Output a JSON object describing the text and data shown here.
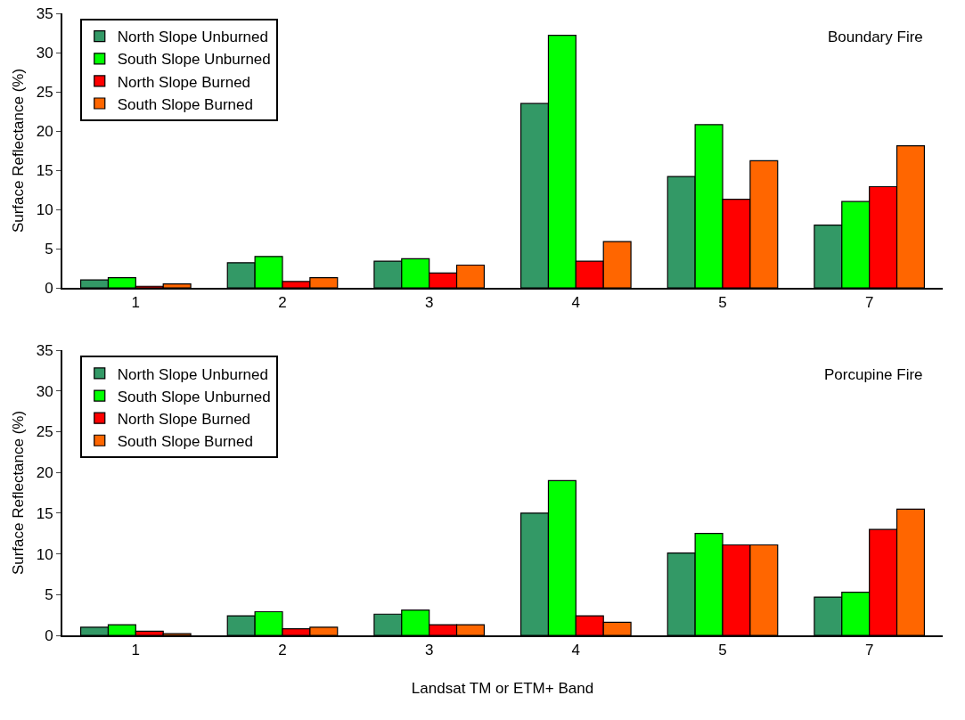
{
  "chart_data": [
    {
      "type": "bar",
      "ylabel": "Surface Reflectance (%)",
      "categories": [
        "1",
        "2",
        "3",
        "4",
        "5",
        "7"
      ],
      "ylim": [
        0,
        35
      ],
      "yticks": [
        0,
        5,
        10,
        15,
        20,
        25,
        30,
        35
      ],
      "grid": false,
      "legend": "top left",
      "annotations": [
        "Boundary Fire"
      ],
      "series": [
        {
          "name": "North Slope Unburned",
          "color": "#339966",
          "values": [
            1.0,
            3.2,
            3.4,
            23.5,
            14.2,
            8.0
          ]
        },
        {
          "name": "South Slope Unburned",
          "color": "#00ff00",
          "values": [
            1.3,
            4.0,
            3.7,
            32.2,
            20.8,
            11.0
          ]
        },
        {
          "name": "North Slope Burned",
          "color": "#ff0000",
          "values": [
            0.2,
            0.8,
            1.9,
            3.4,
            11.3,
            12.9
          ]
        },
        {
          "name": "South Slope Burned",
          "color": "#ff6600",
          "values": [
            0.5,
            1.3,
            2.9,
            5.9,
            16.2,
            18.1
          ]
        }
      ]
    },
    {
      "type": "bar",
      "ylabel": "Surface Reflectance (%)",
      "xlabel": "Landsat TM or ETM+ Band",
      "categories": [
        "1",
        "2",
        "3",
        "4",
        "5",
        "7"
      ],
      "ylim": [
        0,
        35
      ],
      "yticks": [
        0,
        5,
        10,
        15,
        20,
        25,
        30,
        35
      ],
      "grid": false,
      "legend": "top left",
      "annotations": [
        "Porcupine Fire"
      ],
      "series": [
        {
          "name": "North Slope Unburned",
          "color": "#339966",
          "values": [
            1.0,
            2.4,
            2.6,
            15.0,
            10.1,
            4.7
          ]
        },
        {
          "name": "South Slope Unburned",
          "color": "#00ff00",
          "values": [
            1.3,
            2.9,
            3.1,
            19.0,
            12.5,
            5.3
          ]
        },
        {
          "name": "North Slope Burned",
          "color": "#ff0000",
          "values": [
            0.5,
            0.8,
            1.3,
            2.4,
            11.1,
            13.0
          ]
        },
        {
          "name": "South Slope Burned",
          "color": "#ff6600",
          "values": [
            0.2,
            1.0,
            1.3,
            1.6,
            11.1,
            15.5
          ]
        }
      ]
    }
  ]
}
